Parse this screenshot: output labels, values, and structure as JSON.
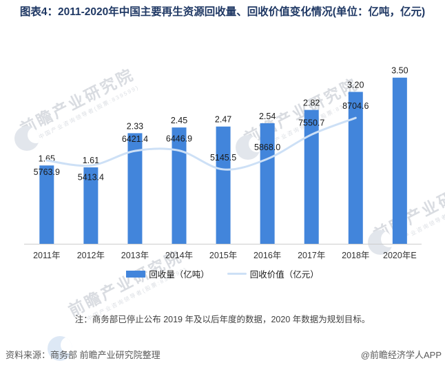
{
  "title": "图表4：2011-2020年中国主要再生资源回收量、回收价值变化情况(单位：亿吨，亿元)",
  "note": "注：商务部已停止公布 2019 年及以后年度的数据，2020 年数据为规划目标。",
  "source_left": "资料来源：商务部 前瞻产业研究院整理",
  "source_right": "@前瞻经济学人APP",
  "watermark": {
    "text": "前瞻产业研究院",
    "subtext": "中国产业咨询领导者(股票:839599)"
  },
  "colors": {
    "bar": "#4285db",
    "line": "#cde0f6",
    "axis": "#cccccc",
    "value_label": "#1a1a1a",
    "axis_label": "#333333",
    "title": "#1f3864"
  },
  "chart_data": {
    "type": "bar",
    "combo": "bar+line",
    "title": "2011-2020年中国主要再生资源回收量、回收价值变化情况",
    "categories": [
      "2011年",
      "2012年",
      "2013年",
      "2014年",
      "2015年",
      "2016年",
      "2017年",
      "2018年",
      "2020年E"
    ],
    "grid": false,
    "legend_position": "bottom",
    "series": [
      {
        "name": "回收量（亿吨）",
        "type": "bar",
        "color": "#4285db",
        "axis_range": [
          0,
          3.83
        ],
        "values": [
          1.65,
          1.61,
          2.33,
          2.45,
          2.47,
          2.54,
          2.82,
          3.2,
          3.5
        ],
        "labels": [
          "1.65",
          "1.61",
          "2.33",
          "2.45",
          "2.47",
          "2.54",
          "2.82",
          "3.20",
          "3.50"
        ]
      },
      {
        "name": "回收价值（亿元）",
        "type": "line",
        "color": "#cde0f6",
        "axis_range": [
          0,
          12571
        ],
        "values": [
          5763.9,
          5413.4,
          6421.4,
          6446.9,
          5145.5,
          5868.0,
          7550.7,
          8704.6,
          null
        ],
        "labels": [
          "5763.9",
          "5413.4",
          "6421.4",
          "6446.9",
          "5145.5",
          "5868.0",
          "7550.7",
          "8704.6",
          ""
        ],
        "label_positions": [
          "below",
          "below",
          "above",
          "above",
          "above",
          "above",
          "above",
          "above",
          null
        ]
      }
    ]
  }
}
